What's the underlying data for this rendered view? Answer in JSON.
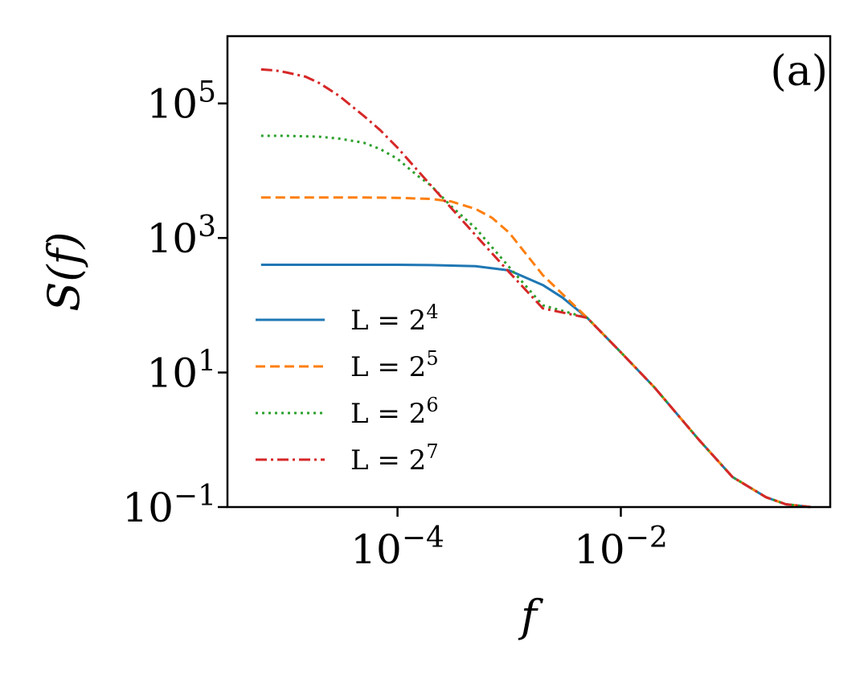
{
  "chart_data": {
    "type": "line",
    "xlabel": "f",
    "ylabel": "S(f)",
    "panel_label": "(a)",
    "x_scale": "log",
    "y_scale": "log",
    "xlim": [
      3e-06,
      0.75
    ],
    "ylim": [
      0.1,
      1000000.0
    ],
    "x_ticks": [
      {
        "value": 0.0001,
        "base": "10",
        "exp": "−4"
      },
      {
        "value": 0.01,
        "base": "10",
        "exp": "−2"
      }
    ],
    "y_ticks": [
      {
        "value": 0.1,
        "base": "10",
        "exp": "−1"
      },
      {
        "value": 10,
        "base": "10",
        "exp": "1"
      },
      {
        "value": 1000,
        "base": "10",
        "exp": "3"
      },
      {
        "value": 100000,
        "base": "10",
        "exp": "5"
      }
    ],
    "grid": false,
    "legend_position": "lower-left",
    "series": [
      {
        "name": "L = 2⁴",
        "legend_base": "L = 2",
        "legend_exp": "4",
        "color": "#1f77b4",
        "dash": "solid",
        "x": [
          6e-06,
          1e-05,
          2e-05,
          5e-05,
          0.0001,
          0.0002,
          0.0005,
          0.001,
          0.002,
          0.003,
          0.005,
          0.01,
          0.02,
          0.05,
          0.1,
          0.2,
          0.3,
          0.5
        ],
        "y": [
          400,
          400,
          400,
          400,
          400,
          395,
          380,
          330,
          200,
          130,
          65,
          20,
          6,
          1,
          0.28,
          0.14,
          0.11,
          0.1
        ]
      },
      {
        "name": "L = 2⁵",
        "legend_base": "L = 2",
        "legend_exp": "5",
        "color": "#ff7f0e",
        "dash": "dashed",
        "x": [
          6e-06,
          1e-05,
          2e-05,
          5e-05,
          0.0001,
          0.0002,
          0.0003,
          0.0005,
          0.0007,
          0.001,
          0.002,
          0.005,
          0.01,
          0.02,
          0.05,
          0.1,
          0.2,
          0.3,
          0.5
        ],
        "y": [
          4000,
          4000,
          4000,
          4000,
          3950,
          3800,
          3500,
          2700,
          2000,
          1200,
          280,
          65,
          20,
          6,
          1,
          0.28,
          0.14,
          0.11,
          0.1
        ]
      },
      {
        "name": "L = 2⁶",
        "legend_base": "L = 2",
        "legend_exp": "6",
        "color": "#2ca02c",
        "dash": "dotted",
        "x": [
          6e-06,
          1e-05,
          2e-05,
          3e-05,
          5e-05,
          7e-05,
          0.0001,
          0.00015,
          0.0002,
          0.0003,
          0.0005,
          0.001,
          0.002,
          0.005,
          0.01,
          0.02,
          0.05,
          0.1,
          0.2,
          0.3,
          0.5
        ],
        "y": [
          33000,
          33000,
          32000,
          30000,
          26000,
          21000,
          15000,
          8500,
          6000,
          3000,
          1400,
          370,
          100,
          65,
          20,
          6,
          1,
          0.28,
          0.14,
          0.11,
          0.1
        ]
      },
      {
        "name": "L = 2⁷",
        "legend_base": "L = 2",
        "legend_exp": "7",
        "color": "#d62728",
        "dash": "dashdot",
        "x": [
          6e-06,
          8e-06,
          1e-05,
          1.5e-05,
          2e-05,
          3e-05,
          5e-05,
          7e-05,
          0.0001,
          0.0002,
          0.0005,
          0.001,
          0.002,
          0.005,
          0.01,
          0.02,
          0.05,
          0.1,
          0.2,
          0.3,
          0.5
        ],
        "y": [
          320000,
          310000,
          290000,
          250000,
          200000,
          130000,
          65000,
          40000,
          22000,
          6000,
          1100,
          310,
          90,
          65,
          20,
          6,
          1,
          0.28,
          0.14,
          0.11,
          0.1
        ]
      }
    ]
  }
}
